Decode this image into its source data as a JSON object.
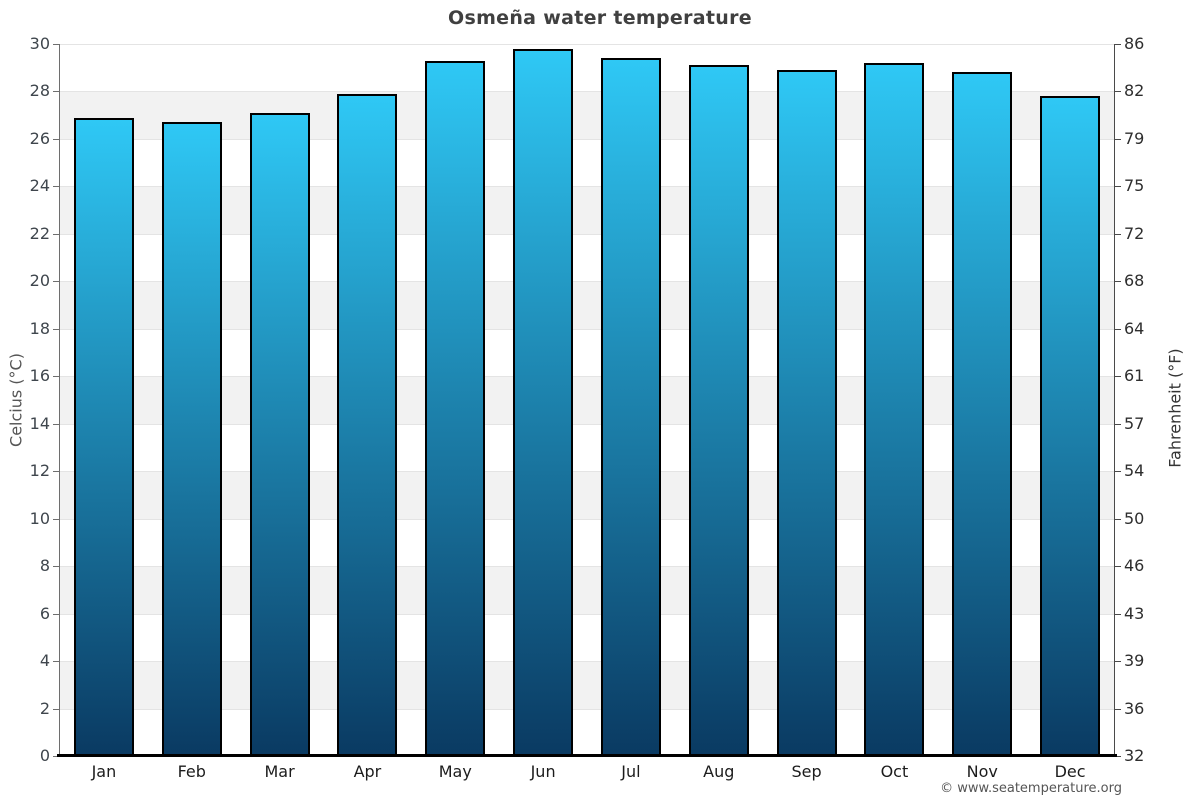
{
  "title": "Osmeña water temperature",
  "footer": "© www.seatemperature.org",
  "left_axis_label": "Celcius (°C)",
  "right_axis_label": "Fahrenheit (°F)",
  "chart_data": {
    "type": "bar",
    "title": "Osmeña water temperature",
    "categories": [
      "Jan",
      "Feb",
      "Mar",
      "Apr",
      "May",
      "Jun",
      "Jul",
      "Aug",
      "Sep",
      "Oct",
      "Nov",
      "Dec"
    ],
    "values": [
      26.9,
      26.7,
      27.1,
      27.9,
      29.3,
      29.8,
      29.4,
      29.1,
      28.9,
      29.2,
      28.8,
      27.8
    ],
    "unit": "°C",
    "xlabel": "",
    "ylabel_left": "Celcius (°C)",
    "ylabel_right": "Fahrenheit (°F)",
    "ylim": [
      0,
      30
    ],
    "celsius_ticks": [
      0,
      2,
      4,
      6,
      8,
      10,
      12,
      14,
      16,
      18,
      20,
      22,
      24,
      26,
      28,
      30
    ],
    "fahrenheit_tick_labels": [
      "32",
      "36",
      "39",
      "43",
      "46",
      "50",
      "54",
      "57",
      "61",
      "64",
      "68",
      "72",
      "75",
      "79",
      "82",
      "86"
    ],
    "grid": "horizontal-bands",
    "legend": "none",
    "colors": {
      "bar_gradient_top": "#2fc8f5",
      "bar_gradient_bottom": "#0a3a62",
      "bar_border": "#000000",
      "band_light": "#ffffff",
      "band_shaded": "#f2f2f2",
      "gridline": "#e4e4e4",
      "axis_line": "#6e6e6e",
      "bottom_axis": "#000000",
      "title_text": "#404040",
      "tick_text": "#3f464d",
      "month_text": "#1c1c1c",
      "footer_text": "#555555"
    }
  }
}
